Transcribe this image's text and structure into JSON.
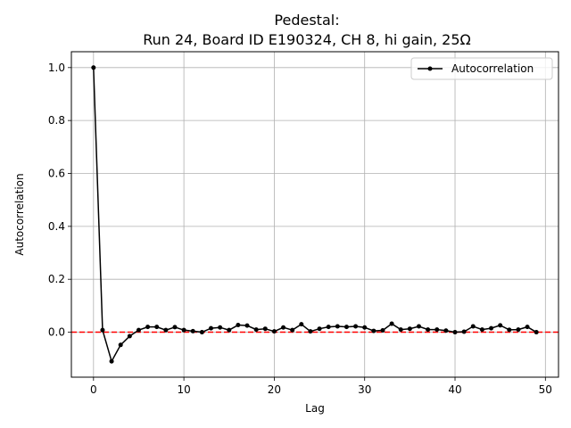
{
  "chart_data": {
    "type": "line",
    "title_line1": "Pedestal:",
    "title_line2": "Run 24, Board ID E190324, CH 8, hi gain, 25Ω",
    "xlabel": "Lag",
    "ylabel": "Autocorrelation",
    "xlim": [
      -2.45,
      51.45
    ],
    "ylim": [
      -0.17,
      1.06
    ],
    "xticks": [
      0,
      10,
      20,
      30,
      40,
      50
    ],
    "xtick_labels": [
      "0",
      "10",
      "20",
      "30",
      "40",
      "50"
    ],
    "yticks": [
      0.0,
      0.2,
      0.4,
      0.6,
      0.8,
      1.0
    ],
    "ytick_labels": [
      "0.0",
      "0.2",
      "0.4",
      "0.6",
      "0.8",
      "1.0"
    ],
    "grid": true,
    "legend_position": "top-right",
    "series": [
      {
        "name": "Autocorrelation",
        "color": "#000000",
        "marker": "circle",
        "x": [
          0,
          1,
          2,
          3,
          4,
          5,
          6,
          7,
          8,
          9,
          10,
          11,
          12,
          13,
          14,
          15,
          16,
          17,
          18,
          19,
          20,
          21,
          22,
          23,
          24,
          25,
          26,
          27,
          28,
          29,
          30,
          31,
          32,
          33,
          34,
          35,
          36,
          37,
          38,
          39,
          40,
          41,
          42,
          43,
          44,
          45,
          46,
          47,
          48,
          49
        ],
        "y": [
          1.0,
          0.008,
          -0.11,
          -0.048,
          -0.015,
          0.008,
          0.02,
          0.02,
          0.008,
          0.019,
          0.008,
          0.004,
          0.0,
          0.015,
          0.018,
          0.008,
          0.027,
          0.025,
          0.01,
          0.013,
          0.003,
          0.018,
          0.008,
          0.03,
          0.003,
          0.013,
          0.02,
          0.022,
          0.02,
          0.022,
          0.018,
          0.005,
          0.007,
          0.032,
          0.01,
          0.013,
          0.022,
          0.01,
          0.01,
          0.006,
          0.0,
          0.002,
          0.022,
          0.01,
          0.015,
          0.026,
          0.009,
          0.01,
          0.02,
          0.0
        ]
      }
    ],
    "reference_line": {
      "y": 0.0,
      "color": "#ff0000",
      "style": "dashed"
    }
  }
}
